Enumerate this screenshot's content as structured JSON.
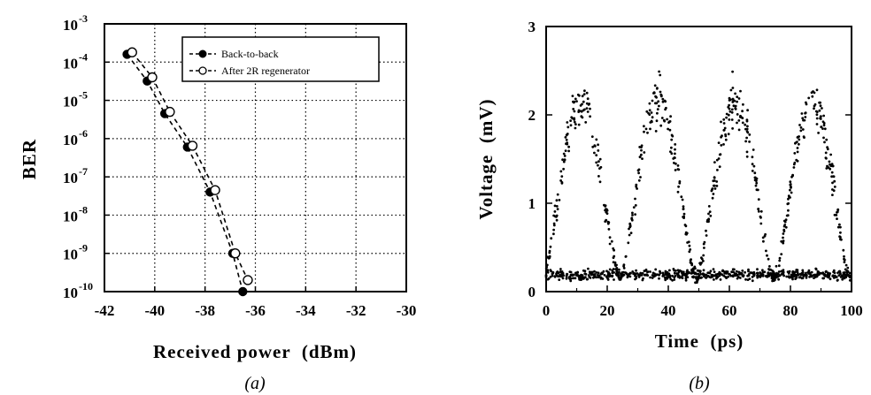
{
  "chart_data": [
    {
      "type": "scatter",
      "panel_label": "(a)",
      "xlabel": "Received power  (dBm)",
      "ylabel": "BER",
      "xlim": [
        -42,
        -30
      ],
      "x_ticks": [
        "-42",
        "-40",
        "-38",
        "-36",
        "-34",
        "-32",
        "-30"
      ],
      "x_tick_values": [
        -42,
        -40,
        -38,
        -36,
        -34,
        -32,
        -30
      ],
      "ylim_exponent": [
        -10,
        -3
      ],
      "y_scale": "log",
      "y_tick_exponents": [
        -3,
        -4,
        -5,
        -6,
        -7,
        -8,
        -9,
        -10
      ],
      "y_tick_base": "10",
      "grid": true,
      "legend_position": "top-right",
      "series": [
        {
          "name": "Back-to-back",
          "marker": "filled-circle",
          "x": [
            -41.1,
            -40.3,
            -39.6,
            -38.7,
            -37.8,
            -36.9,
            -36.5
          ],
          "y": [
            0.00016,
            3.2e-05,
            4.5e-06,
            6e-07,
            4e-08,
            1e-09,
            1e-10
          ]
        },
        {
          "name": "After 2R regenerator",
          "marker": "open-circle",
          "x": [
            -40.9,
            -40.1,
            -39.4,
            -38.5,
            -37.6,
            -36.8,
            -36.3
          ],
          "y": [
            0.00018,
            4e-05,
            5e-06,
            6.5e-07,
            4.5e-08,
            1e-09,
            2e-10
          ]
        }
      ]
    },
    {
      "type": "scatter",
      "panel_label": "(b)",
      "xlabel": "Time  (ps)",
      "ylabel": "Voltage  (mV)",
      "xlim": [
        0,
        100
      ],
      "ylim": [
        0,
        3
      ],
      "x_ticks": [
        "0",
        "20",
        "40",
        "60",
        "80",
        "100"
      ],
      "x_tick_values": [
        0,
        20,
        40,
        60,
        80,
        100
      ],
      "y_ticks": [
        "0",
        "1",
        "2",
        "3"
      ],
      "y_tick_values": [
        0,
        1,
        2,
        3
      ],
      "grid": false,
      "marker": "small-dot",
      "bit_period_ps": 25.2,
      "first_peak_ps": 11.5,
      "high_level_mV": 2.15,
      "low_level_mV": 0.15,
      "peak_max_mV": 2.7,
      "points_per_level": 650
    }
  ]
}
